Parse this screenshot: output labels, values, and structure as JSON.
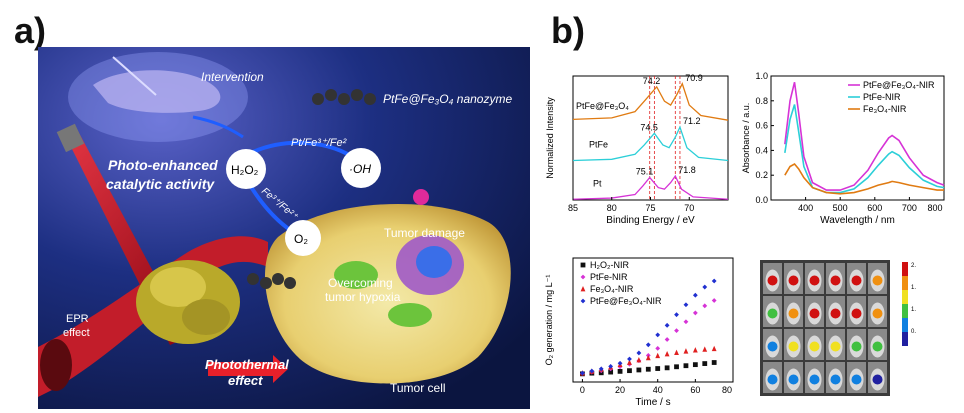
{
  "labels": {
    "a": "a)",
    "b": "b)"
  },
  "illustration": {
    "intervention": "Intervention",
    "nanozyme": "PtFe@Fe₃O₄ nanozyme",
    "photo_enhanced": "Photo-enhanced",
    "catalytic_activity": "catalytic activity",
    "h2o2": "H₂O₂",
    "pt_fe_pair": "Pt/Fe³⁺/Fe²",
    "oh": "·OH",
    "fe_pair": "Fe³⁺/Fe²⁺",
    "o2": "O₂",
    "tumor_damage": "Tumor damage",
    "overcoming": "Overcoming",
    "tumor_hypoxia": "tumor hypoxia",
    "epr": "EPR",
    "effect": "effect",
    "photothermal": "Photothermal",
    "photothermal_effect": "effect",
    "tumor_cell": "Tumor  cell"
  },
  "chart_data": [
    {
      "type": "line",
      "xlabel": "Binding Energy / eV",
      "ylabel": "Normalized Intensity",
      "xlim": [
        85,
        65
      ],
      "xticks": [
        85,
        80,
        75,
        70
      ],
      "grid": false,
      "dashed_lines": [
        75.1,
        74.5,
        71.8,
        71.2
      ],
      "series": [
        {
          "name": "PtFe@Fe₃O₄",
          "color": "#e07b12",
          "offset": 2.0,
          "x": [
            85,
            80,
            77,
            75.8,
            74.2,
            73.2,
            72.4,
            71.6,
            70.9,
            70.0,
            68.5,
            65
          ],
          "y": [
            0.08,
            0.12,
            0.28,
            0.55,
            0.92,
            0.55,
            0.45,
            0.72,
            1.0,
            0.45,
            0.18,
            0.06
          ],
          "peaks": [
            {
              "x": 74.2,
              "label": "74.2"
            },
            {
              "x": 70.9,
              "label": "70.9"
            }
          ]
        },
        {
          "name": "PtFe",
          "color": "#2ccfd8",
          "offset": 1.0,
          "x": [
            85,
            80,
            77,
            75.8,
            74.5,
            73.4,
            72.6,
            71.8,
            71.2,
            70.3,
            68.8,
            65
          ],
          "y": [
            0.02,
            0.05,
            0.18,
            0.42,
            0.72,
            0.42,
            0.35,
            0.62,
            0.88,
            0.35,
            0.1,
            0.02
          ],
          "peaks": [
            {
              "x": 74.5,
              "label": "74.5"
            },
            {
              "x": 71.2,
              "label": "71.2"
            }
          ]
        },
        {
          "name": "Pt",
          "color": "#d633d6",
          "offset": 0.0,
          "x": [
            85,
            80,
            77,
            76.0,
            75.1,
            74.0,
            73.2,
            72.4,
            71.8,
            71.0,
            69.5,
            65
          ],
          "y": [
            0.02,
            0.05,
            0.14,
            0.36,
            0.58,
            0.32,
            0.28,
            0.45,
            0.62,
            0.28,
            0.08,
            0.02
          ],
          "peaks": [
            {
              "x": 75.1,
              "label": "75.1"
            },
            {
              "x": 71.8,
              "label": "71.8"
            }
          ]
        }
      ],
      "series_labels": [
        "PtFe@Fe₃O₄",
        "PtFe",
        "Pt"
      ]
    },
    {
      "type": "line",
      "xlabel": "Wavelength / nm",
      "ylabel": "Absorbance / a.u.",
      "xlim": [
        300,
        800
      ],
      "ylim": [
        0.0,
        1.0
      ],
      "xticks": [
        400,
        500,
        600,
        700,
        800
      ],
      "yticks": [
        0.0,
        0.2,
        0.4,
        0.6,
        0.8,
        1.0
      ],
      "grid": false,
      "legend_position": "top-right",
      "series": [
        {
          "name": "PtFe@Fe₃O₄-NIR",
          "color": "#d633d6",
          "x": [
            340,
            355,
            368,
            380,
            395,
            420,
            460,
            500,
            540,
            580,
            610,
            640,
            650,
            670,
            700,
            740,
            780,
            800
          ],
          "y": [
            0.45,
            0.8,
            0.95,
            0.7,
            0.35,
            0.14,
            0.08,
            0.08,
            0.12,
            0.24,
            0.38,
            0.5,
            0.52,
            0.48,
            0.34,
            0.2,
            0.14,
            0.12
          ]
        },
        {
          "name": "PtFe-NIR",
          "color": "#2ccfd8",
          "x": [
            340,
            355,
            368,
            380,
            395,
            420,
            460,
            500,
            540,
            580,
            610,
            640,
            650,
            670,
            700,
            740,
            780,
            800
          ],
          "y": [
            0.38,
            0.65,
            0.77,
            0.55,
            0.27,
            0.1,
            0.06,
            0.06,
            0.09,
            0.18,
            0.28,
            0.37,
            0.39,
            0.36,
            0.26,
            0.16,
            0.11,
            0.1
          ]
        },
        {
          "name": "Fe₃O₄-NIR",
          "color": "#e07b12",
          "x": [
            340,
            355,
            368,
            380,
            395,
            420,
            460,
            500,
            540,
            580,
            610,
            640,
            650,
            670,
            700,
            740,
            780,
            800
          ],
          "y": [
            0.2,
            0.27,
            0.29,
            0.25,
            0.18,
            0.1,
            0.06,
            0.05,
            0.06,
            0.09,
            0.12,
            0.14,
            0.15,
            0.14,
            0.12,
            0.1,
            0.08,
            0.08
          ]
        }
      ]
    },
    {
      "type": "scatter",
      "xlabel": "Time / s",
      "ylabel": "O₂ generation / mg L⁻¹",
      "xlim": [
        -5,
        80
      ],
      "ylim": [
        5,
        40
      ],
      "xticks": [
        0,
        20,
        40,
        60,
        80
      ],
      "grid": false,
      "legend_position": "top-left",
      "series": [
        {
          "name": "H₂O₂-NIR",
          "color": "#111111",
          "marker": "square",
          "x": [
            0,
            5,
            10,
            15,
            20,
            25,
            30,
            35,
            40,
            45,
            50,
            55,
            60,
            65,
            70
          ],
          "y": [
            7.3,
            7.5,
            7.6,
            7.8,
            8.0,
            8.2,
            8.4,
            8.6,
            8.8,
            9.0,
            9.3,
            9.6,
            9.9,
            10.2,
            10.5
          ]
        },
        {
          "name": "PtFe-NIR",
          "color": "#d633d6",
          "marker": "diamond",
          "x": [
            0,
            5,
            10,
            15,
            20,
            25,
            30,
            35,
            40,
            45,
            50,
            55,
            60,
            65,
            70
          ],
          "y": [
            7.4,
            7.8,
            8.2,
            8.7,
            9.3,
            10.0,
            11.0,
            12.5,
            14.5,
            17.0,
            19.5,
            22.0,
            24.5,
            26.5,
            28.0
          ]
        },
        {
          "name": "Fe₃O₄-NIR",
          "color": "#e02020",
          "marker": "triangle",
          "x": [
            0,
            5,
            10,
            15,
            20,
            25,
            30,
            35,
            40,
            45,
            50,
            55,
            60,
            65,
            70
          ],
          "y": [
            7.5,
            8.0,
            8.6,
            9.2,
            9.9,
            10.5,
            11.2,
            11.8,
            12.4,
            12.9,
            13.3,
            13.7,
            14.0,
            14.2,
            14.4
          ]
        },
        {
          "name": "PtFe@Fe₃O₄-NIR",
          "color": "#2030d0",
          "marker": "diamond",
          "x": [
            0,
            5,
            10,
            15,
            20,
            25,
            30,
            35,
            40,
            45,
            50,
            55,
            60,
            65,
            70
          ],
          "y": [
            7.5,
            8.1,
            8.7,
            9.4,
            10.3,
            11.5,
            13.2,
            15.5,
            18.3,
            21.0,
            24.0,
            26.8,
            29.5,
            31.8,
            33.5
          ]
        }
      ]
    },
    {
      "type": "heatmap",
      "rows": 4,
      "cols": 6,
      "colorbar": {
        "ticks": [
          "2.0",
          "1.5",
          "1.0",
          "0.5"
        ],
        "colors": [
          "#d01010",
          "#f09010",
          "#f0e020",
          "#40c040",
          "#1080e0",
          "#2020a0"
        ]
      }
    }
  ]
}
